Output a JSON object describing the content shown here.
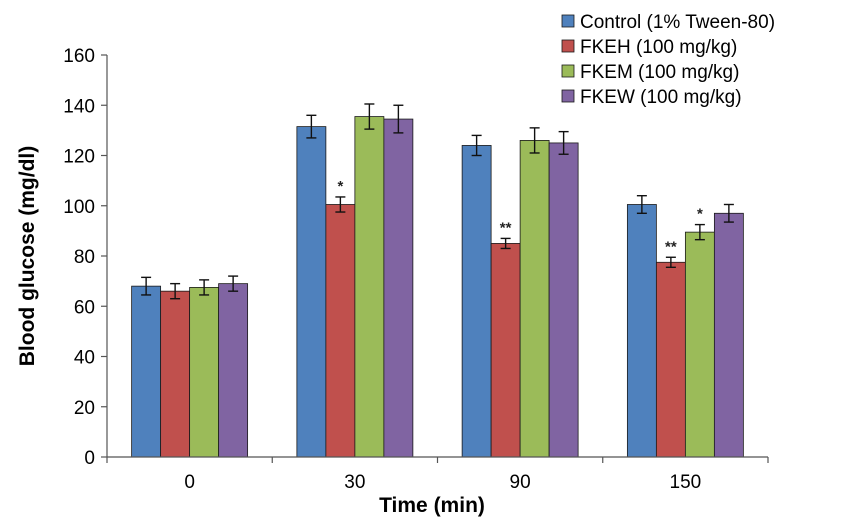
{
  "chart_data": {
    "type": "bar",
    "xlabel": "Time (min)",
    "ylabel": "Blood glucose (mg/dl)",
    "ylim": [
      0,
      160
    ],
    "yticks": [
      0,
      20,
      40,
      60,
      80,
      100,
      120,
      140,
      160
    ],
    "categories": [
      "0",
      "30",
      "90",
      "150"
    ],
    "grid": false,
    "legend_position": "top-right",
    "series": [
      {
        "name": "Control (1% Tween-80)",
        "color": "#4f81bd",
        "values": [
          68,
          131.5,
          124,
          100.5
        ],
        "errors": [
          3.5,
          4.5,
          4,
          3.5
        ],
        "annotations": [
          "",
          "",
          "",
          ""
        ]
      },
      {
        "name": "FKEH (100 mg/kg)",
        "color": "#c0504d",
        "values": [
          66,
          100.5,
          85,
          77.5
        ],
        "errors": [
          3,
          3,
          2,
          2
        ],
        "annotations": [
          "",
          "*",
          "**",
          "**"
        ]
      },
      {
        "name": "FKEM (100 mg/kg)",
        "color": "#9bbb59",
        "values": [
          67.5,
          135.5,
          126,
          89.5
        ],
        "errors": [
          3,
          5,
          5,
          3
        ],
        "annotations": [
          "",
          "",
          "",
          "*"
        ]
      },
      {
        "name": "FKEW (100 mg/kg)",
        "color": "#8064a2",
        "values": [
          69,
          134.5,
          125,
          97
        ],
        "errors": [
          3,
          5.5,
          4.5,
          3.5
        ],
        "annotations": [
          "",
          "",
          "",
          ""
        ]
      }
    ]
  }
}
